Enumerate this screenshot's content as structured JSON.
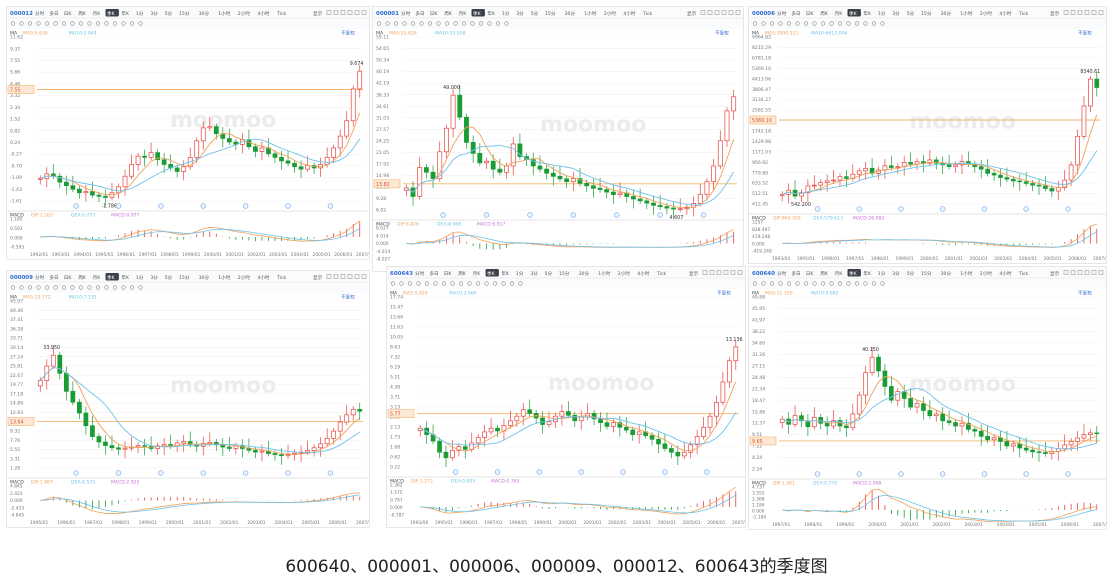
{
  "ui": {
    "periods": [
      "分时",
      "多日",
      "日K",
      "周K",
      "月K",
      "季K",
      "年K",
      "1分",
      "3分",
      "5分",
      "15分",
      "30分",
      "1小时",
      "2小时",
      "4小时",
      "Tick"
    ],
    "active_period": "季K",
    "display_label": "显示",
    "restore_label": "不复权",
    "watermark": "moomoo",
    "macd_label": "MACD",
    "ma_label": "MA"
  },
  "caption": "600640、000001、000006、000009、000012、600643的季度图",
  "colors": {
    "up": "#e5453f",
    "down": "#1a9c35",
    "ma5": "#f0a15a",
    "ma10": "#6fc2ea",
    "ref": "#f5b56b",
    "grid": "#f1f1f1",
    "axis": "#8a8a8a",
    "accent": "#2f6bd1"
  },
  "chart_data": [
    {
      "type": "candlestick",
      "code": "000012",
      "ma": {
        "ma5": "MA5:5.639",
        "ma10": "MA10:2.944"
      },
      "y_ticks": [
        "11.62",
        "9.37",
        "7.55",
        "5.86",
        "4.48",
        "3.32",
        "2.34",
        "1.52",
        "0.82",
        "0.24",
        "-0.27",
        "-0.70",
        "-1.09",
        "-1.43",
        "-1.61"
      ],
      "ylim": [
        -1.9,
        12.0
      ],
      "ref_price": "7.55",
      "markers": {
        "high": "9.674",
        "low": "-1.786"
      },
      "x_labels": [
        "1992/01",
        "1993/01",
        "1994/01",
        "1995/01",
        "1996/01",
        "1997/01",
        "1998/01",
        "1999/01",
        "2000/01",
        "2001/01",
        "2002/01",
        "2003/01",
        "2004/01",
        "2005/01",
        "2006/01",
        "2007/01"
      ],
      "close": [
        0.0,
        0.4,
        0.2,
        -0.3,
        -0.6,
        -0.9,
        -1.2,
        -1.1,
        -1.4,
        -1.5,
        -1.6,
        -1.2,
        -0.7,
        0.2,
        1.2,
        1.9,
        1.8,
        2.2,
        1.6,
        1.2,
        0.9,
        0.6,
        1.0,
        1.8,
        3.2,
        4.3,
        4.4,
        3.8,
        3.4,
        3.1,
        2.9,
        3.3,
        2.7,
        2.3,
        2.6,
        2.1,
        1.8,
        1.5,
        1.3,
        1.0,
        0.8,
        1.1,
        0.9,
        1.2,
        1.8,
        2.6,
        3.6,
        4.9,
        7.6,
        9.1
      ],
      "macd": {
        "dif": "DIF:1.262",
        "dea": "DEA:0.773",
        "macd": "MACD:0.977",
        "ticks": [
          "1.185",
          "0.593",
          "0.000",
          "-0.593"
        ],
        "ylim": [
          -0.7,
          1.25
        ]
      }
    },
    {
      "type": "candlestick",
      "code": "000001",
      "ma": {
        "ma5": "MA5:25.626",
        "ma10": "MA10:15.558"
      },
      "y_ticks": [
        "59.11",
        "54.65",
        "50.34",
        "46.19",
        "42.19",
        "38.33",
        "34.61",
        "31.03",
        "27.57",
        "24.25",
        "21.05",
        "17.92",
        "14.98",
        "12.13",
        "9.28",
        "6.02"
      ],
      "ylim": [
        5.5,
        60.5
      ],
      "ref_price": "13.82",
      "markers": {
        "high": "49.000",
        "low": "4.607"
      },
      "x_labels": [],
      "close": [
        12.5,
        9.8,
        19.0,
        17.5,
        15.5,
        24.0,
        31.5,
        42.0,
        35.0,
        27.0,
        23.5,
        20.5,
        21.0,
        18.5,
        17.5,
        19.5,
        26.5,
        22.5,
        21.5,
        19.5,
        18.5,
        17.2,
        16.2,
        15.4,
        14.5,
        15.5,
        14.0,
        13.2,
        12.4,
        12.0,
        11.2,
        10.4,
        10.9,
        9.8,
        9.0,
        8.4,
        7.7,
        7.0,
        6.6,
        6.1,
        5.8,
        5.9,
        6.4,
        7.6,
        10.5,
        14.5,
        19.5,
        27.5,
        37.0,
        41.5
      ],
      "macd": {
        "dif": "DIF:6.426",
        "dea": "DEA:4.968",
        "macd": "MACD:6.917",
        "ticks": [
          "8.027",
          "4.014",
          "0.000",
          "-4.014",
          "-8.027"
        ],
        "ylim": [
          -8.4,
          8.4
        ]
      }
    },
    {
      "type": "candlestick",
      "code": "000006",
      "ma": {
        "ma5": "MA5:3990.521",
        "ma10": "MA10:6613.006"
      },
      "y_ticks": [
        "9964.82",
        "8215.29",
        "6781.18",
        "5369.10",
        "4413.06",
        "3806.47",
        "3134.27",
        "2582.55",
        "2121.99",
        "1742.18",
        "1429.98",
        "1171.03",
        "956.92",
        "779.89",
        "633.52",
        "512.51",
        "412.45"
      ],
      "ylim": [
        380,
        10300
      ],
      "ref_price": "5369.10",
      "markers": {
        "high": "8340.61",
        "low": "542.200"
      },
      "x_labels": [
        "1993/04",
        "1995/01",
        "1996/01",
        "1997/01",
        "1998/01",
        "1999/01",
        "2000/01",
        "2001/01",
        "2002/01",
        "2003/01",
        "2004/01",
        "2005/01",
        "2006/01",
        "2007/01"
      ],
      "close": [
        950,
        1200,
        850,
        1050,
        1450,
        1500,
        1650,
        1750,
        1800,
        2000,
        1900,
        2150,
        2350,
        2500,
        2200,
        2400,
        2650,
        2550,
        2600,
        2850,
        2750,
        2900,
        2800,
        3000,
        2800,
        2700,
        2600,
        2700,
        2900,
        2750,
        2600,
        2450,
        2200,
        2100,
        1950,
        1850,
        1750,
        1700,
        1600,
        1500,
        1450,
        1300,
        1150,
        1350,
        1800,
        2700,
        4400,
        6200,
        7800,
        7300
      ],
      "macd": {
        "dif": "DIF:960.303",
        "dea": "DEA:579.613",
        "macd": "MACD:26.982",
        "ticks": [
          "1257",
          "838.497",
          "419.248",
          "0.000",
          "-419.248"
        ],
        "ylim": [
          -450,
          1300
        ]
      }
    },
    {
      "type": "candlestick",
      "code": "000009",
      "ma": {
        "ma5": "MA5:12.772",
        "ma10": "MA10:7.135"
      },
      "y_ticks": [
        "45.97",
        "40.46",
        "37.41",
        "36.28",
        "33.71",
        "30.14",
        "27.24",
        "25.81",
        "22.67",
        "19.77",
        "17.18",
        "14.89",
        "12.93",
        "10.15",
        "9.32",
        "7.76",
        "5.55",
        "3.31",
        "1.28"
      ],
      "ylim": [
        0.8,
        47.0
      ],
      "ref_price": "13.64",
      "markers": {
        "high": "33.950",
        "low": ""
      },
      "x_labels": [
        "1995/01",
        "1996/01",
        "1997/01",
        "1998/01",
        "1999/01",
        "2000/01",
        "2001/01",
        "2002/01",
        "2003/01",
        "2004/01",
        "2005/01",
        "2006/01",
        "2007/01"
      ],
      "close": [
        25,
        29,
        32,
        27,
        22,
        19,
        16,
        12.5,
        9.5,
        8.0,
        7.0,
        6.4,
        6.0,
        6.3,
        6.6,
        7.0,
        6.8,
        6.2,
        6.9,
        7.3,
        6.9,
        7.7,
        8.1,
        7.3,
        6.8,
        7.6,
        7.9,
        7.2,
        6.6,
        6.2,
        6.9,
        6.2,
        5.7,
        5.2,
        5.5,
        4.8,
        4.5,
        4.2,
        4.5,
        4.9,
        5.2,
        5.6,
        6.4,
        7.5,
        9.0,
        11.0,
        13.5,
        15.5,
        17.0,
        16.5
      ],
      "macd": {
        "dif": "DIF:1.987",
        "dea": "DEA:0.525",
        "macd": "MACD:2.925",
        "ticks": [
          "4.845",
          "2.423",
          "0.000",
          "-2.423",
          "-4.845"
        ],
        "ylim": [
          -5.0,
          5.0
        ]
      }
    },
    {
      "type": "candlestick",
      "code": "600643",
      "ma": {
        "ma5": "MA5:5.929",
        "ma10": "MA10:3.966"
      },
      "y_ticks": [
        "17.74",
        "15.47",
        "13.66",
        "11.63",
        "10.05",
        "8.63",
        "7.32",
        "6.19",
        "5.21",
        "4.38",
        "3.71",
        "3.13",
        "2.63",
        "2.13",
        "1.73",
        "1.08",
        "0.62",
        "0.22"
      ],
      "ylim": [
        0.0,
        18.4
      ],
      "ref_price": "5.77",
      "markers": {
        "high": "13.136",
        "low": ""
      },
      "x_labels": [
        "1993/06",
        "1995/01",
        "1996/01",
        "1997/01",
        "1998/01",
        "1999/01",
        "2000/01",
        "2001/01",
        "2002/01",
        "2003/01",
        "2004/01",
        "2005/01",
        "2006/01",
        "2007/01"
      ],
      "close": [
        4.2,
        3.5,
        2.8,
        1.6,
        1.0,
        1.8,
        2.2,
        1.9,
        2.6,
        3.2,
        3.8,
        4.2,
        3.9,
        4.5,
        5.0,
        5.5,
        6.2,
        5.8,
        5.3,
        4.6,
        4.9,
        5.5,
        6.0,
        5.6,
        5.0,
        5.4,
        5.8,
        5.2,
        4.8,
        4.4,
        4.8,
        4.3,
        4.0,
        3.5,
        3.8,
        3.4,
        3.0,
        2.5,
        2.0,
        1.6,
        1.2,
        1.6,
        2.4,
        3.3,
        4.3,
        5.5,
        7.0,
        9.2,
        11.5,
        13.0
      ],
      "macd": {
        "dif": "DIF:1.272",
        "dea": "DEA:0.903",
        "macd": "MACD:0.763",
        "ticks": [
          "2.362",
          "1.575",
          "0.787",
          "0.000",
          "-0.787"
        ],
        "ylim": [
          -0.9,
          2.45
        ]
      }
    },
    {
      "type": "candlestick",
      "code": "600640",
      "ma": {
        "ma5": "MA5:11.350",
        "ma10": "MA10:9.882"
      },
      "y_ticks": [
        "49.88",
        "45.95",
        "41.97",
        "38.22",
        "34.60",
        "31.26",
        "27.15",
        "24.48",
        "21.34",
        "18.47",
        "15.86",
        "12.37",
        "9.51",
        "7.22",
        "4.24",
        "2.24"
      ],
      "ylim": [
        1.5,
        51.5
      ],
      "ref_price": "9.65",
      "markers": {
        "high": "40.150",
        "low": ""
      },
      "x_labels": [
        "1997/01",
        "1998/01",
        "1999/01",
        "2000/01",
        "2001/01",
        "2002/01",
        "2003/01",
        "2004/01",
        "2005/01",
        "2006/01",
        "2007/01"
      ],
      "close": [
        16.0,
        14.5,
        17.0,
        15.5,
        13.8,
        16.5,
        14.8,
        14.0,
        15.6,
        14.0,
        13.5,
        17.5,
        23.0,
        29.5,
        34.0,
        30.0,
        25.5,
        21.5,
        24.0,
        22.0,
        19.5,
        20.5,
        18.5,
        17.0,
        17.5,
        15.5,
        15.0,
        14.0,
        14.8,
        13.0,
        12.5,
        11.0,
        10.0,
        10.6,
        9.5,
        8.2,
        8.8,
        7.6,
        7.0,
        6.5,
        6.3,
        6.0,
        6.6,
        7.4,
        8.5,
        9.5,
        10.5,
        11.5,
        12.0,
        11.8
      ],
      "macd": {
        "dif": "DIF:1.561",
        "dea": "DEA:0.770",
        "macd": "MACD:2.998",
        "ticks": [
          "4.737",
          "3.552",
          "2.368",
          "1.184",
          "0.000",
          "-1.184"
        ],
        "ylim": [
          -1.5,
          4.9
        ]
      }
    }
  ]
}
